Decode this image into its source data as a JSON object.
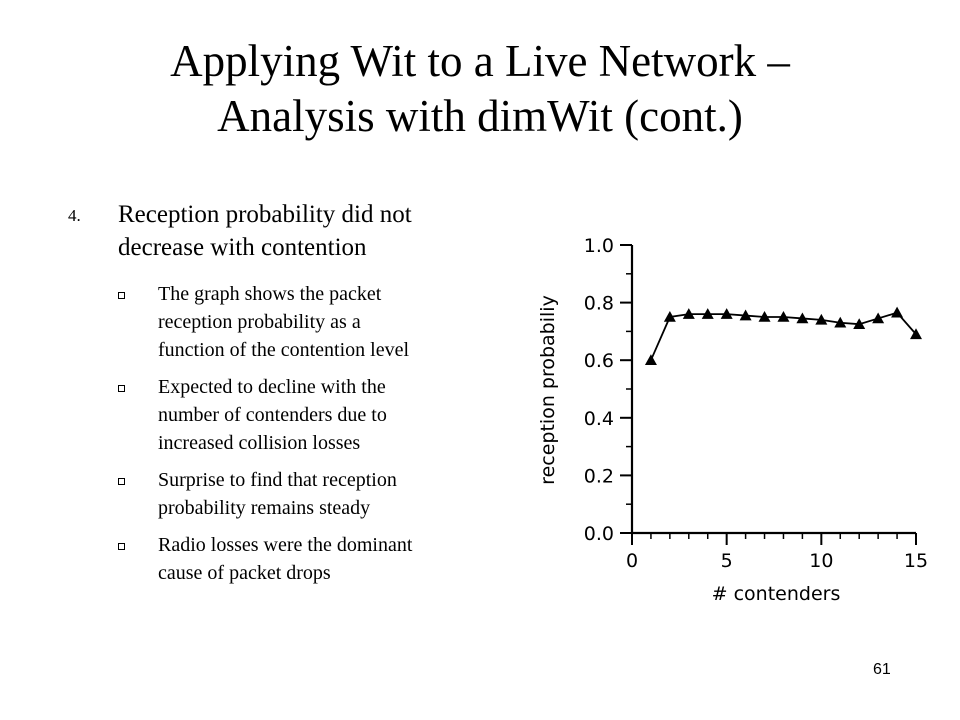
{
  "slide": {
    "title_lines": [
      "Applying Wit to a Live Network –",
      "Analysis with dimWit (cont.)"
    ],
    "point_number": "4.",
    "point_lines": [
      "Reception probability did not",
      "decrease with contention"
    ],
    "bullets": [
      {
        "lines": [
          "The graph shows the packet",
          "reception probability as a",
          "function of the contention level"
        ]
      },
      {
        "lines": [
          "Expected to decline with the",
          "number of contenders due to",
          "increased collision losses"
        ]
      },
      {
        "lines": [
          "Surprise to find that reception",
          "probability remains steady"
        ]
      },
      {
        "lines": [
          "Radio losses were the dominant",
          "cause of packet drops"
        ]
      }
    ],
    "page_number": "61"
  },
  "chart_data": {
    "type": "line",
    "xlabel": "# contenders",
    "ylabel": "reception probabiliy",
    "xlim": [
      0,
      15
    ],
    "ylim": [
      0.0,
      1.0
    ],
    "x_ticks": [
      "0",
      "5",
      "10",
      "15"
    ],
    "y_ticks": [
      "0.0",
      "0.2",
      "0.4",
      "0.6",
      "0.8",
      "1.0"
    ],
    "marker": "triangle",
    "grid": false,
    "series": [
      {
        "x": [
          1,
          2,
          3,
          4,
          5,
          6,
          7,
          8,
          9,
          10,
          11,
          12,
          13,
          14,
          15
        ],
        "y": [
          0.6,
          0.75,
          0.76,
          0.76,
          0.76,
          0.755,
          0.75,
          0.75,
          0.745,
          0.74,
          0.73,
          0.725,
          0.745,
          0.765,
          0.69
        ]
      }
    ]
  }
}
